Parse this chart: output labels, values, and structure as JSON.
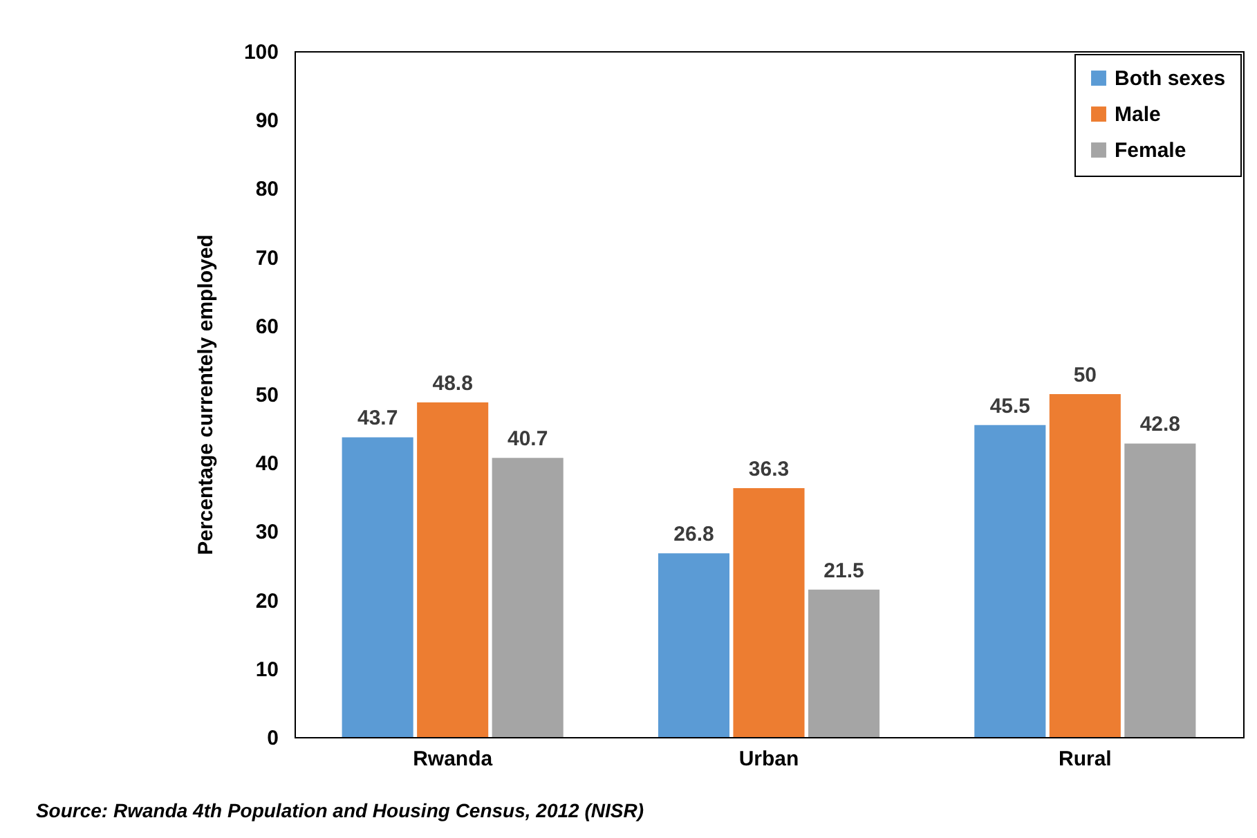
{
  "chart_data": {
    "type": "bar",
    "ylabel": "Percentage currentely employed",
    "categories": [
      "Rwanda",
      "Urban",
      "Rural"
    ],
    "series": [
      {
        "name": "Both sexes",
        "color": "#5b9bd5",
        "values": [
          43.7,
          26.8,
          45.5
        ]
      },
      {
        "name": "Male",
        "color": "#ed7d31",
        "values": [
          48.8,
          36.3,
          50
        ]
      },
      {
        "name": "Female",
        "color": "#a5a5a5",
        "values": [
          40.7,
          21.5,
          42.8
        ]
      }
    ],
    "ylim": [
      0,
      100
    ],
    "yticks": [
      0,
      10,
      20,
      30,
      40,
      50,
      60,
      70,
      80,
      90,
      100
    ],
    "grid": false,
    "legend": "top right",
    "data_labels": true,
    "annotations": [
      "Source: Rwanda 4th Population  and Housing Census, 2012 (NISR)"
    ]
  }
}
